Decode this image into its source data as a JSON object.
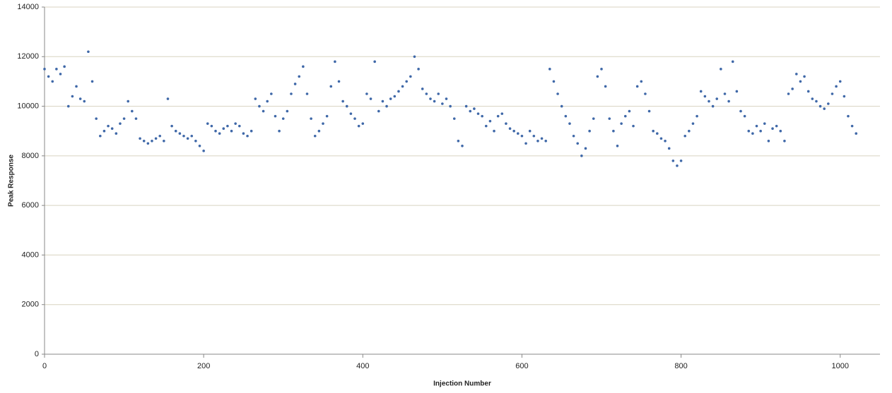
{
  "chart_data": {
    "type": "scatter",
    "x_label": "Injection Number",
    "y_label": "Peak Response",
    "color": "#3f68a8",
    "grid": true,
    "xlim": [
      0,
      1050
    ],
    "xticks": [
      0,
      200,
      400,
      600,
      800,
      1000
    ],
    "ylim": [
      0,
      14000
    ],
    "yticks": [
      0,
      2000,
      4000,
      6000,
      8000,
      10000,
      12000,
      14000
    ],
    "x": [
      0,
      5,
      10,
      15,
      20,
      25,
      30,
      35,
      40,
      45,
      50,
      55,
      60,
      65,
      70,
      75,
      80,
      85,
      90,
      95,
      100,
      105,
      110,
      115,
      120,
      125,
      130,
      135,
      140,
      145,
      150,
      155,
      160,
      165,
      170,
      175,
      180,
      185,
      190,
      195,
      200,
      205,
      210,
      215,
      220,
      225,
      230,
      235,
      240,
      245,
      250,
      255,
      260,
      265,
      270,
      275,
      280,
      285,
      290,
      295,
      300,
      305,
      310,
      315,
      320,
      325,
      330,
      335,
      340,
      345,
      350,
      355,
      360,
      365,
      370,
      375,
      380,
      385,
      390,
      395,
      400,
      405,
      410,
      415,
      420,
      425,
      430,
      435,
      440,
      445,
      450,
      455,
      460,
      465,
      470,
      475,
      480,
      485,
      490,
      495,
      500,
      505,
      510,
      515,
      520,
      525,
      530,
      535,
      540,
      545,
      550,
      555,
      560,
      565,
      570,
      575,
      580,
      585,
      590,
      595,
      600,
      605,
      610,
      615,
      620,
      625,
      630,
      635,
      640,
      645,
      650,
      655,
      660,
      665,
      670,
      675,
      680,
      685,
      690,
      695,
      700,
      705,
      710,
      715,
      720,
      725,
      730,
      735,
      740,
      745,
      750,
      755,
      760,
      765,
      770,
      775,
      780,
      785,
      790,
      795,
      800,
      805,
      810,
      815,
      820,
      825,
      830,
      835,
      840,
      845,
      850,
      855,
      860,
      865,
      870,
      875,
      880,
      885,
      890,
      895,
      900,
      905,
      910,
      915,
      920,
      925,
      930,
      935,
      940,
      945,
      950,
      955,
      960,
      965,
      970,
      975,
      980,
      985,
      990,
      995,
      1000,
      1005,
      1010,
      1015,
      1020
    ],
    "y": [
      11500,
      11200,
      11000,
      11500,
      11300,
      11600,
      10000,
      10400,
      10800,
      10300,
      10200,
      12200,
      11000,
      9500,
      8800,
      9000,
      9200,
      9100,
      8900,
      9300,
      9500,
      10200,
      9800,
      9500,
      8700,
      8600,
      8500,
      8600,
      8700,
      8800,
      8600,
      10300,
      9200,
      9000,
      8900,
      8800,
      8700,
      8800,
      8600,
      8400,
      8200,
      9300,
      9200,
      9000,
      8900,
      9100,
      9200,
      9000,
      9300,
      9200,
      8900,
      8800,
      9000,
      10300,
      10000,
      9800,
      10200,
      10500,
      9600,
      9000,
      9500,
      9800,
      10500,
      10900,
      11200,
      11600,
      10500,
      9500,
      8800,
      9000,
      9300,
      9600,
      10800,
      11800,
      11000,
      10200,
      10000,
      9700,
      9500,
      9200,
      9300,
      10500,
      10300,
      11800,
      9800,
      10200,
      10000,
      10300,
      10400,
      10600,
      10800,
      11000,
      11200,
      12000,
      11500,
      10700,
      10500,
      10300,
      10200,
      10500,
      10100,
      10300,
      10000,
      9500,
      8600,
      8400,
      10000,
      9800,
      9900,
      9700,
      9600,
      9200,
      9400,
      9000,
      9600,
      9700,
      9300,
      9100,
      9000,
      8900,
      8800,
      8500,
      9000,
      8800,
      8600,
      8700,
      8600,
      11500,
      11000,
      10500,
      10000,
      9600,
      9300,
      8800,
      8500,
      8000,
      8300,
      9000,
      9500,
      11200,
      11500,
      10800,
      9500,
      9000,
      8400,
      9300,
      9600,
      9800,
      9200,
      10800,
      11000,
      10500,
      9800,
      9000,
      8900,
      8700,
      8600,
      8300,
      7800,
      7600,
      7800,
      8800,
      9000,
      9300,
      9600,
      10600,
      10400,
      10200,
      10000,
      10300,
      11500,
      10500,
      10200,
      11800,
      10600,
      9800,
      9600,
      9000,
      8900,
      9200,
      9000,
      9300,
      8600,
      9100,
      9200,
      9000,
      8600,
      10500,
      10700,
      11300,
      11000,
      11200,
      10600,
      10300,
      10200,
      10000,
      9900,
      10100,
      10500,
      10800,
      11000,
      10400,
      9600,
      9200,
      8900
    ]
  }
}
